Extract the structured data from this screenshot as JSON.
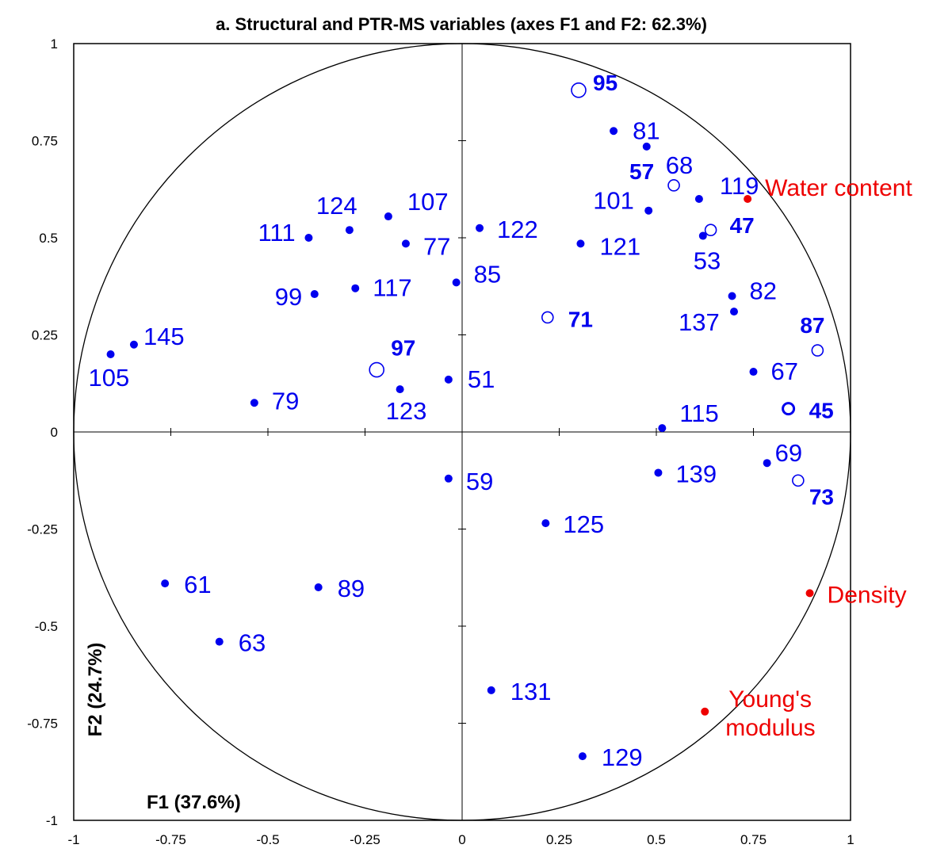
{
  "chart_data": {
    "type": "scatter",
    "title": "a. Structural and PTR-MS variables (axes F1 and F2: 62.3%)",
    "xlabel": "F1 (37.6%)",
    "ylabel": "F2 (24.7%)",
    "xlim": [
      -1,
      1
    ],
    "ylim": [
      -1,
      1
    ],
    "x_ticks": [
      "-1",
      "-0.75",
      "-0.5",
      "-0.25",
      "0",
      "0.25",
      "0.5",
      "0.75",
      "1"
    ],
    "y_ticks": [
      "1",
      "0.75",
      "0.5",
      "0.25",
      "0",
      "-0.25",
      "-0.5",
      "-0.75",
      "-1"
    ],
    "correlation_circle": true,
    "colors": {
      "ptr_ms": "#0000ee",
      "structural": "#ee0000",
      "axes": "#000000"
    },
    "series": [
      {
        "name": "PTR-MS",
        "marker": "filled",
        "points": [
          {
            "label": "81",
            "x": 0.39,
            "y": 0.775
          },
          {
            "label": "68",
            "x": 0.475,
            "y": 0.735
          },
          {
            "label": "119",
            "x": 0.61,
            "y": 0.6
          },
          {
            "label": "101",
            "x": 0.48,
            "y": 0.57
          },
          {
            "label": "53",
            "x": 0.62,
            "y": 0.505
          },
          {
            "label": "121",
            "x": 0.305,
            "y": 0.485
          },
          {
            "label": "122",
            "x": 0.045,
            "y": 0.525
          },
          {
            "label": "107",
            "x": -0.19,
            "y": 0.555
          },
          {
            "label": "124",
            "x": -0.29,
            "y": 0.52
          },
          {
            "label": "111",
            "x": -0.395,
            "y": 0.5
          },
          {
            "label": "77",
            "x": -0.145,
            "y": 0.485
          },
          {
            "label": "85",
            "x": -0.015,
            "y": 0.385
          },
          {
            "label": "117",
            "x": -0.275,
            "y": 0.37
          },
          {
            "label": "99",
            "x": -0.38,
            "y": 0.355
          },
          {
            "label": "82",
            "x": 0.695,
            "y": 0.35
          },
          {
            "label": "137",
            "x": 0.7,
            "y": 0.31
          },
          {
            "label": "145",
            "x": -0.845,
            "y": 0.225
          },
          {
            "label": "105",
            "x": -0.905,
            "y": 0.2
          },
          {
            "label": "67",
            "x": 0.75,
            "y": 0.155
          },
          {
            "label": "51",
            "x": -0.035,
            "y": 0.135
          },
          {
            "label": "123",
            "x": -0.16,
            "y": 0.11
          },
          {
            "label": "79",
            "x": -0.535,
            "y": 0.075
          },
          {
            "label": "115",
            "x": 0.515,
            "y": 0.01
          },
          {
            "label": "69",
            "x": 0.785,
            "y": -0.08
          },
          {
            "label": "139",
            "x": 0.505,
            "y": -0.105
          },
          {
            "label": "59",
            "x": -0.035,
            "y": -0.12
          },
          {
            "label": "125",
            "x": 0.215,
            "y": -0.235
          },
          {
            "label": "61",
            "x": -0.765,
            "y": -0.39
          },
          {
            "label": "89",
            "x": -0.37,
            "y": -0.4
          },
          {
            "label": "63",
            "x": -0.625,
            "y": -0.54
          },
          {
            "label": "131",
            "x": 0.075,
            "y": -0.665
          },
          {
            "label": "129",
            "x": 0.31,
            "y": -0.835
          }
        ]
      },
      {
        "name": "PTR-MS (bold)",
        "marker": "open",
        "points": [
          {
            "label": "95",
            "x": 0.3,
            "y": 0.88
          },
          {
            "label": "57",
            "x": 0.545,
            "y": 0.635
          },
          {
            "label": "47",
            "x": 0.64,
            "y": 0.52
          },
          {
            "label": "71",
            "x": 0.22,
            "y": 0.295
          },
          {
            "label": "87",
            "x": 0.915,
            "y": 0.21
          },
          {
            "label": "97",
            "x": -0.22,
            "y": 0.16
          },
          {
            "label": "45",
            "x": 0.84,
            "y": 0.06
          },
          {
            "label": "73",
            "x": 0.865,
            "y": -0.125
          }
        ]
      },
      {
        "name": "Structural",
        "marker": "filled",
        "points": [
          {
            "label": "Water content",
            "x": 0.735,
            "y": 0.6
          },
          {
            "label": "Density",
            "x": 0.895,
            "y": -0.415
          },
          {
            "label": "Young's modulus",
            "x": 0.625,
            "y": -0.72
          }
        ]
      }
    ]
  }
}
